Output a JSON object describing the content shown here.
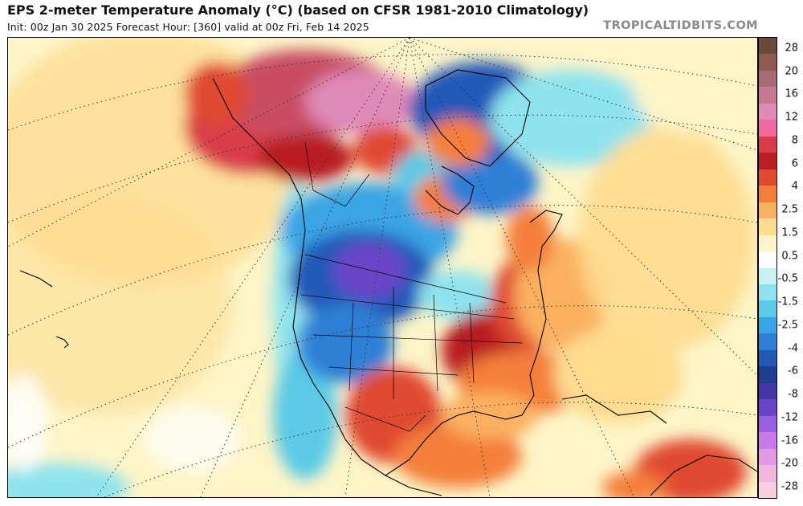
{
  "header": {
    "title": "EPS 2-meter Temperature Anomaly (°C) (based on CFSR 1981-2010 Climatology)",
    "subtitle": "Init: 00z Jan 30 2025   Forecast Hour: [360]   valid at 00z Fri, Feb 14 2025",
    "brand": "TROPICALTIDBITS.COM"
  },
  "colorbar": {
    "tick_labels": [
      "28",
      "20",
      "16",
      "12",
      "8",
      "6",
      "4",
      "2.5",
      "1.5",
      "0.5",
      "-0.5",
      "-1.5",
      "-2.5",
      "-4",
      "-6",
      "-8",
      "-12",
      "-16",
      "-20",
      "-28"
    ],
    "colors": [
      "#6b4a3a",
      "#8c5a4e",
      "#a86a73",
      "#c47a94",
      "#e08ab8",
      "#f06aa0",
      "#d83c48",
      "#b81e22",
      "#e04a30",
      "#f47f3a",
      "#fbb061",
      "#fedb8f",
      "#fdf5c8",
      "#ffffff",
      "#c8f1f4",
      "#8fe3ee",
      "#5ccae6",
      "#3aa5e4",
      "#2f7fd6",
      "#2358b8",
      "#1f3e90",
      "#4536a6",
      "#6a44c8",
      "#9a5ee2",
      "#c87ae9",
      "#e39ae5",
      "#f0b6df",
      "#f7cfe0"
    ]
  },
  "map": {
    "ocean_color": "#fdf5c8",
    "land_outline": "#000000"
  }
}
